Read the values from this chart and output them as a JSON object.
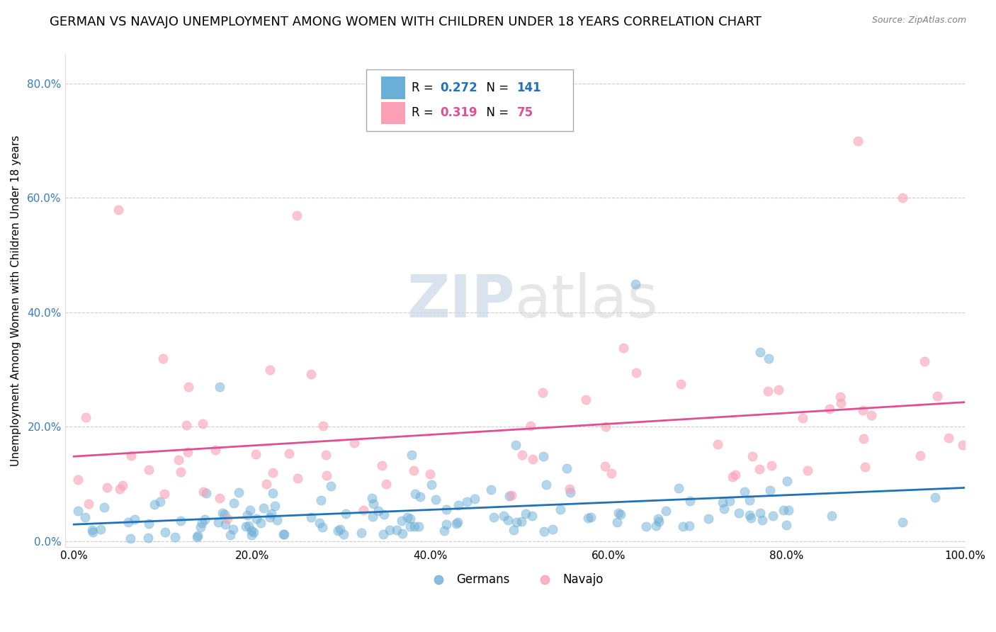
{
  "title": "GERMAN VS NAVAJO UNEMPLOYMENT AMONG WOMEN WITH CHILDREN UNDER 18 YEARS CORRELATION CHART",
  "source": "Source: ZipAtlas.com",
  "ylabel": "Unemployment Among Women with Children Under 18 years",
  "xlabel": "",
  "xlim": [
    0.0,
    1.0
  ],
  "ylim": [
    0.0,
    0.85
  ],
  "xticks": [
    0.0,
    0.2,
    0.4,
    0.6,
    0.8,
    1.0
  ],
  "xtick_labels": [
    "0.0%",
    "20.0%",
    "40.0%",
    "60.0%",
    "80.0%",
    "100.0%"
  ],
  "yticks": [
    0.0,
    0.2,
    0.4,
    0.6,
    0.8
  ],
  "ytick_labels": [
    "0.0%",
    "20.0%",
    "40.0%",
    "60.0%",
    "80.0%"
  ],
  "legend_labels": [
    "Germans",
    "Navajo"
  ],
  "german_color": "#6baed6",
  "navajo_color": "#fa9fb5",
  "german_line_color": "#2171b5",
  "navajo_line_color": "#e05090",
  "watermark_zip": "ZIP",
  "watermark_atlas": "atlas",
  "german_R": 0.272,
  "german_N": 141,
  "navajo_R": 0.319,
  "navajo_N": 75,
  "background_color": "#ffffff",
  "grid_color": "#cccccc",
  "title_fontsize": 13,
  "axis_fontsize": 11,
  "tick_fontsize": 11,
  "tick_color": "#3a7abf",
  "legend_fontsize": 13
}
